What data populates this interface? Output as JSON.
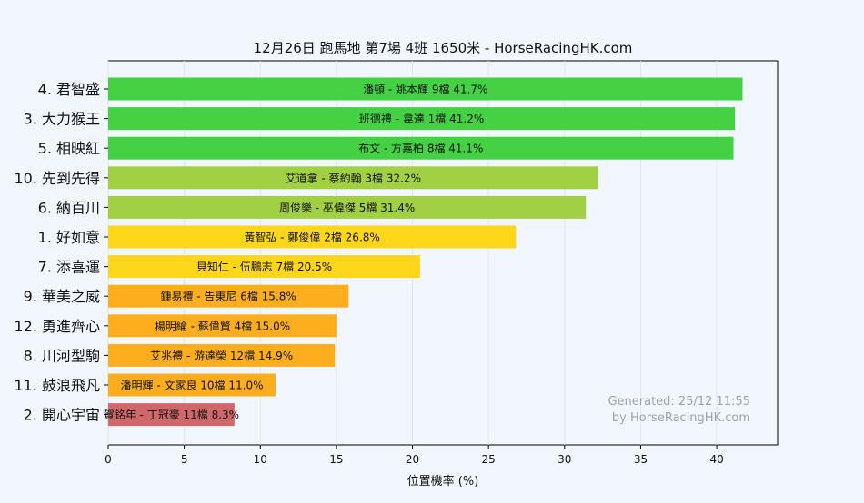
{
  "chart_data": {
    "type": "bar",
    "orientation": "horizontal",
    "title": "12月26日  跑馬地  第7場  4班  1650米 - HorseRacingHK.com",
    "xlabel": "位置機率 (%)",
    "ylabel": "",
    "xlim": [
      0,
      44
    ],
    "xticks": [
      0,
      5,
      10,
      15,
      20,
      25,
      30,
      35,
      40
    ],
    "grid": true,
    "categories": [
      "4. 君智盛",
      "3. 大力猴王",
      "5. 相映紅",
      "10. 先到先得",
      "6. 納百川",
      "1. 好如意",
      "7. 添喜運",
      "9. 華美之威",
      "12. 勇進齊心",
      "8. 川河型駒",
      "11. 鼓浪飛凡",
      "2. 開心宇宙"
    ],
    "values": [
      41.7,
      41.2,
      41.1,
      32.2,
      31.4,
      26.8,
      20.5,
      15.8,
      15.0,
      14.9,
      11.0,
      8.3
    ],
    "bar_labels": [
      "潘頓 - 姚本輝 9檔  41.7%",
      "班德禮 - 韋達 1檔  41.2%",
      "布文 - 方嘉柏 8檔  41.1%",
      "艾道拿 - 蔡約翰 3檔  32.2%",
      "周俊樂 - 巫偉傑 5檔  31.4%",
      "黃智弘 - 鄭俊偉 2檔  26.8%",
      "貝知仁 - 伍鵬志 7檔  20.5%",
      "鍾易禮 - 告東尼 6檔  15.8%",
      "楊明綸 - 蘇偉賢 4檔  15.0%",
      "艾兆禮 - 游達榮 12檔  14.9%",
      "潘明輝 - 文家良 10檔  11.0%",
      "賀銘年 - 丁冠豪 11檔  8.3%"
    ],
    "colors": [
      "#44d244",
      "#44d244",
      "#44d244",
      "#a2d044",
      "#a2d044",
      "#fcd619",
      "#fcd619",
      "#fcae1e",
      "#fcae1e",
      "#fcae1e",
      "#fcae1e",
      "#d0686b"
    ],
    "watermark": [
      "Generated: 25/12 11:55",
      "by HorseRacingHK.com"
    ]
  }
}
